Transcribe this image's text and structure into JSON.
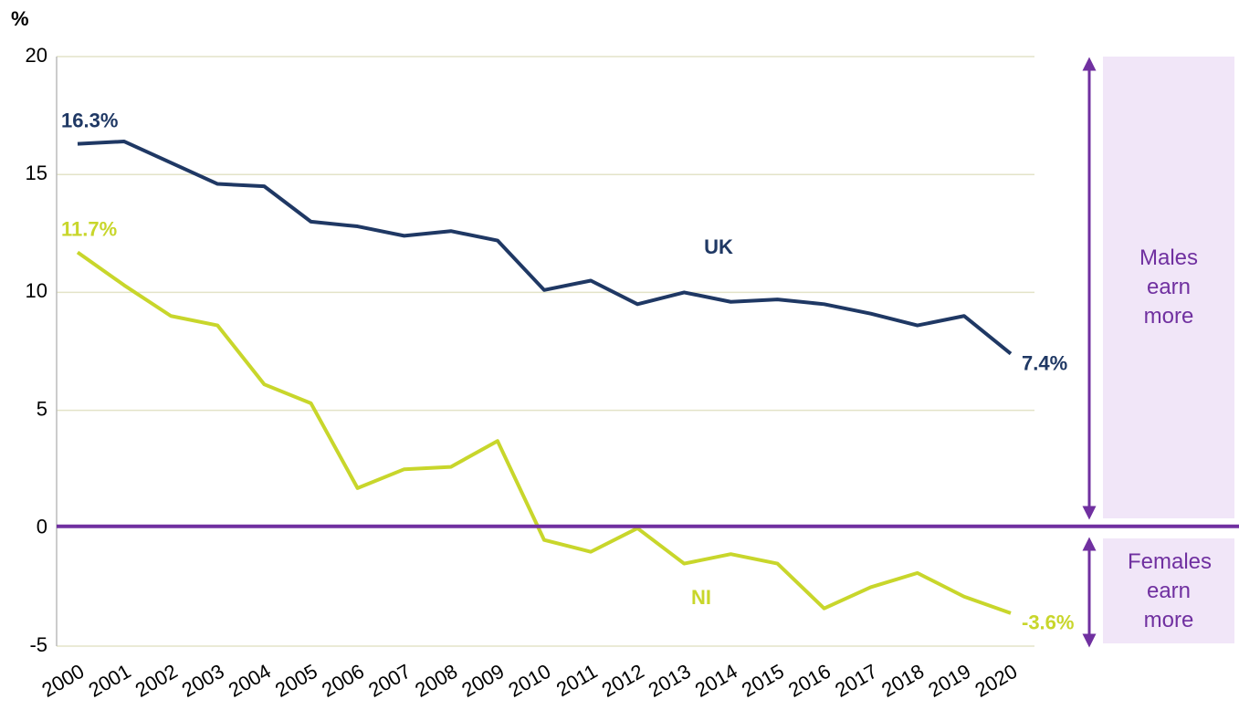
{
  "chart_data": {
    "type": "line",
    "y_unit": "%",
    "categories": [
      "2000",
      "2001",
      "2002",
      "2003",
      "2004",
      "2005",
      "2006",
      "2007",
      "2008",
      "2009",
      "2010",
      "2011",
      "2012",
      "2013",
      "2014",
      "2015",
      "2016",
      "2017",
      "2018",
      "2019",
      "2020"
    ],
    "series": [
      {
        "name": "UK",
        "color": "#1f3864",
        "values": [
          16.3,
          16.4,
          15.5,
          14.6,
          14.5,
          13.0,
          12.8,
          12.4,
          12.6,
          12.2,
          10.1,
          10.5,
          9.5,
          10.0,
          9.6,
          9.7,
          9.5,
          9.1,
          8.6,
          9.0,
          7.4
        ],
        "value_labels": [
          "16.3%",
          null,
          null,
          null,
          null,
          null,
          null,
          null,
          null,
          null,
          null,
          null,
          null,
          null,
          null,
          null,
          null,
          null,
          null,
          null,
          "7.4%"
        ]
      },
      {
        "name": "NI",
        "color": "#c8d62b",
        "values": [
          11.7,
          10.3,
          9.0,
          8.6,
          6.1,
          5.3,
          1.7,
          2.5,
          2.6,
          3.7,
          -0.5,
          -1.0,
          0.0,
          -1.5,
          -1.1,
          -1.5,
          -3.4,
          -2.5,
          -1.9,
          -2.9,
          -3.6
        ],
        "value_labels": [
          "11.7%",
          null,
          null,
          null,
          null,
          null,
          null,
          null,
          null,
          null,
          null,
          null,
          null,
          null,
          null,
          null,
          null,
          null,
          null,
          null,
          "-3.6%"
        ]
      }
    ],
    "ylim": [
      -5,
      20
    ],
    "yticks": [
      -5,
      0,
      5,
      10,
      15,
      20
    ],
    "grid": true,
    "zero_line_color": "#7030a0",
    "annotations": [
      "Males earn more",
      "Females earn more"
    ]
  }
}
